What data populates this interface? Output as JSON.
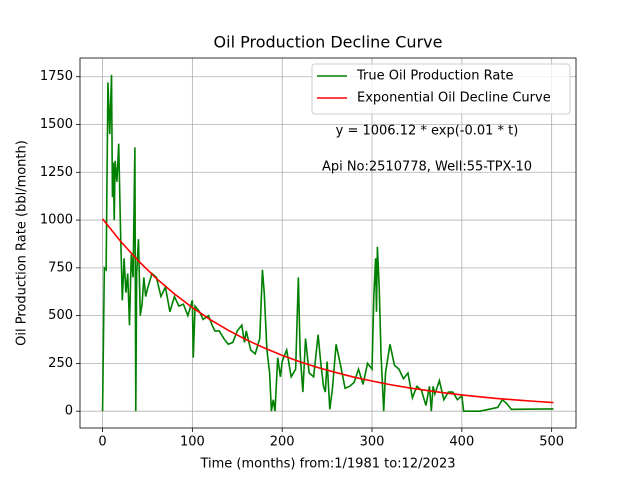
{
  "chart_data": {
    "type": "line",
    "title": "Oil Production Decline Curve",
    "xlabel": "Time (months) from:1/1981 to:12/2023",
    "ylabel": "Oil Production Rate (bbl/month)",
    "annotations": [
      "y = 1006.12 * exp(-0.01 * t)",
      "Api No:2510778, Well:55-TPX-10"
    ],
    "xlim": [
      -25.1,
      527.1
    ],
    "ylim": [
      -88,
      1848
    ],
    "xticks": [
      0,
      100,
      200,
      300,
      400,
      500
    ],
    "yticks": [
      0,
      250,
      500,
      750,
      1000,
      1250,
      1500,
      1750
    ],
    "grid": true,
    "legend": "upper right",
    "series": [
      {
        "name": "True Oil Production Rate",
        "color": "#008000",
        "x": [
          0,
          2,
          4,
          6,
          8,
          10,
          11,
          12,
          13,
          14,
          16,
          18,
          20,
          22,
          24,
          26,
          28,
          30,
          32,
          34,
          36,
          37,
          38,
          40,
          42,
          44,
          46,
          48,
          50,
          55,
          60,
          65,
          70,
          75,
          80,
          85,
          90,
          95,
          100,
          101,
          103,
          108,
          112,
          118,
          122,
          125,
          130,
          135,
          140,
          145,
          150,
          155,
          158,
          160,
          165,
          170,
          175,
          178,
          180,
          183,
          186,
          188,
          190,
          192,
          195,
          198,
          200,
          205,
          210,
          215,
          218,
          220,
          223,
          226,
          230,
          235,
          240,
          243,
          246,
          248,
          250,
          253,
          256,
          260,
          265,
          270,
          275,
          280,
          285,
          290,
          295,
          300,
          302,
          304,
          305,
          306,
          308,
          310,
          313,
          315,
          320,
          325,
          330,
          335,
          340,
          345,
          350,
          355,
          360,
          364,
          366,
          368,
          370,
          375,
          380,
          385,
          390,
          395,
          400,
          402,
          420,
          440,
          445,
          450,
          455,
          502
        ],
        "values": [
          0,
          750,
          740,
          1720,
          1450,
          1760,
          1120,
          1300,
          1000,
          1310,
          1200,
          1400,
          950,
          580,
          800,
          620,
          720,
          450,
          820,
          700,
          1380,
          0,
          720,
          900,
          500,
          560,
          700,
          600,
          640,
          720,
          700,
          600,
          650,
          520,
          600,
          550,
          560,
          500,
          580,
          280,
          550,
          520,
          480,
          500,
          450,
          420,
          420,
          380,
          350,
          360,
          420,
          450,
          360,
          420,
          320,
          300,
          380,
          740,
          620,
          320,
          200,
          0,
          60,
          0,
          280,
          180,
          260,
          320,
          180,
          220,
          700,
          300,
          100,
          380,
          200,
          180,
          400,
          250,
          130,
          100,
          260,
          10,
          120,
          350,
          240,
          120,
          130,
          150,
          220,
          140,
          250,
          220,
          600,
          800,
          520,
          860,
          650,
          300,
          0,
          200,
          350,
          240,
          220,
          170,
          200,
          70,
          130,
          110,
          30,
          130,
          0,
          130,
          90,
          160,
          60,
          100,
          100,
          60,
          80,
          0,
          0,
          20,
          60,
          40,
          10,
          12
        ]
      },
      {
        "name": "Exponential Oil Decline Curve",
        "color": "#ff0000",
        "x": [
          0,
          20,
          40,
          60,
          80,
          100,
          120,
          140,
          160,
          180,
          200,
          220,
          240,
          260,
          280,
          300,
          320,
          340,
          360,
          380,
          400,
          420,
          440,
          460,
          480,
          502
        ],
        "values": [
          1006,
          889,
          786,
          694,
          614,
          542,
          479,
          423,
          374,
          331,
          292,
          258,
          228,
          202,
          178,
          158,
          139,
          123,
          109,
          96,
          85,
          75,
          66,
          59,
          52,
          45
        ]
      }
    ]
  }
}
